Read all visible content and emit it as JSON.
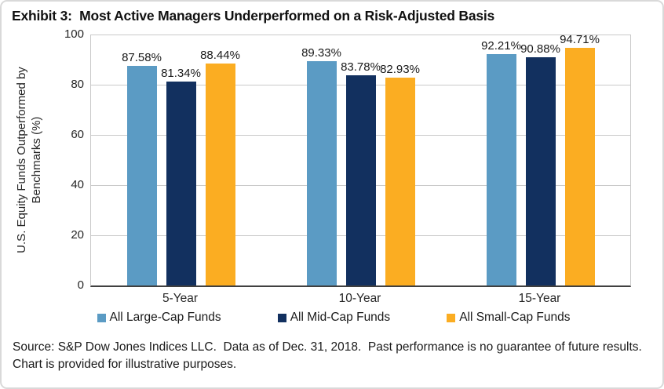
{
  "title": "Exhibit 3:  Most Active Managers Underperformed on a Risk-Adjusted Basis",
  "source_note": "Source: S&P Dow Jones Indices LLC.  Data as of Dec. 31, 2018.  Past performance is no guarantee of future results.  Chart is provided for illustrative purposes.",
  "chart_data": {
    "type": "bar",
    "title": "Exhibit 3:  Most Active Managers Underperformed on a Risk-Adjusted Basis",
    "categories": [
      "5-Year",
      "10-Year",
      "15-Year"
    ],
    "series": [
      {
        "name": "All Large-Cap Funds",
        "color": "#5B9BC4",
        "values": [
          87.58,
          89.33,
          92.21
        ]
      },
      {
        "name": "All Mid-Cap Funds",
        "color": "#12305F",
        "values": [
          81.34,
          83.78,
          90.88
        ]
      },
      {
        "name": "All Small-Cap Funds",
        "color": "#FBAD22",
        "values": [
          88.44,
          82.93,
          94.71
        ]
      }
    ],
    "xlabel": "",
    "ylabel": "U.S. Equity Funds Outperformed by Benchmarks (%)",
    "ylabel_lines": [
      "U.S. Equity Funds Outperformed by",
      "Benchmarks (%)"
    ],
    "ylim": [
      0,
      100
    ],
    "yticks": [
      0,
      20,
      40,
      60,
      80,
      100
    ],
    "data_label_format": "0.00%",
    "grid": true,
    "legend_position": "bottom",
    "axis_color": "#404040",
    "gridline_color": "#C9C9C9"
  }
}
